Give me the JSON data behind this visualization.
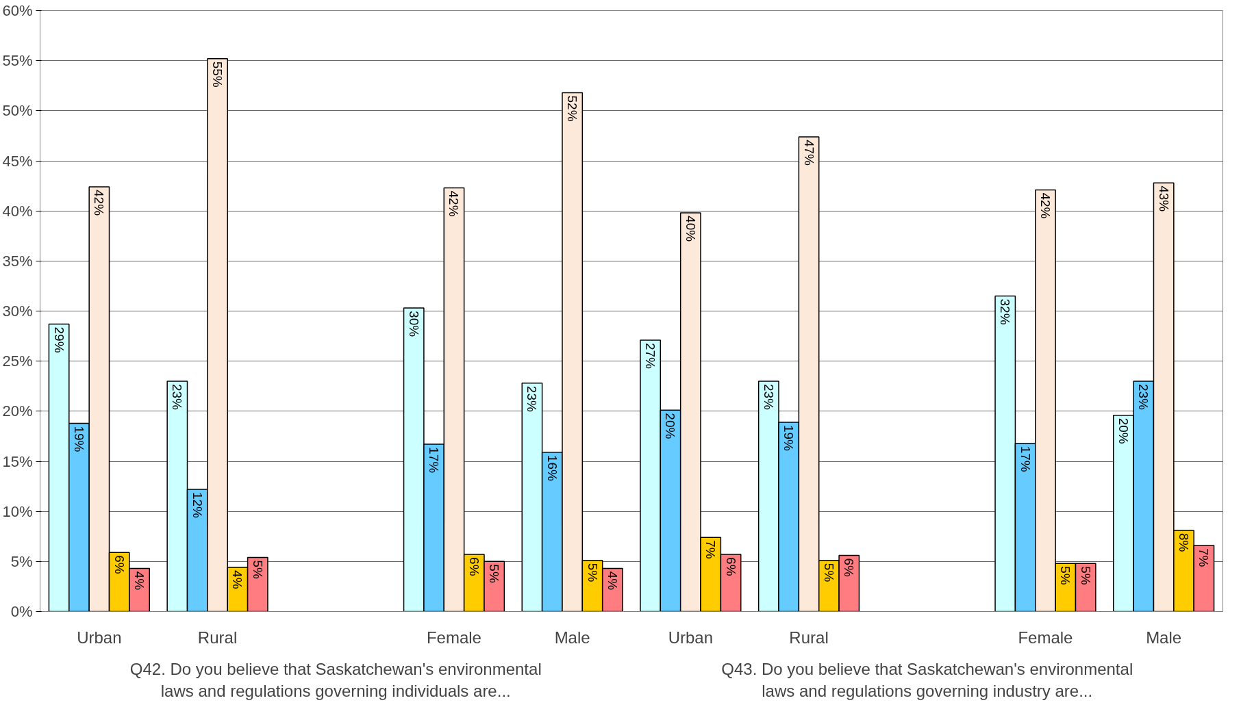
{
  "chart_data": {
    "type": "bar",
    "categories": [
      "Urban",
      "Rural",
      null,
      "Female",
      "Male",
      "Urban",
      "Rural",
      null,
      "Female",
      "Male"
    ],
    "series": [
      {
        "color": "#ccffff",
        "values": [
          28.7,
          23.0,
          null,
          30.3,
          22.8,
          27.1,
          23.0,
          null,
          31.5,
          19.6
        ],
        "value_labels": [
          "29%",
          "23%",
          null,
          "30%",
          "23%",
          "27%",
          "23%",
          null,
          "32%",
          "20%"
        ]
      },
      {
        "color": "#66ccff",
        "values": [
          18.8,
          12.2,
          null,
          16.7,
          15.9,
          20.1,
          18.9,
          null,
          16.8,
          23.0
        ],
        "value_labels": [
          "19%",
          "12%",
          null,
          "17%",
          "16%",
          "20%",
          "19%",
          null,
          "17%",
          "23%"
        ]
      },
      {
        "color": "#fde9d9",
        "values": [
          42.4,
          55.2,
          null,
          42.3,
          51.8,
          39.8,
          47.4,
          null,
          42.1,
          42.8
        ],
        "value_labels": [
          "42%",
          "55%",
          null,
          "42%",
          "52%",
          "40%",
          "47%",
          null,
          "42%",
          "43%"
        ]
      },
      {
        "color": "#ffcc00",
        "values": [
          5.9,
          4.4,
          null,
          5.7,
          5.1,
          7.4,
          5.1,
          null,
          4.8,
          8.1
        ],
        "value_labels": [
          "6%",
          "4%",
          null,
          "6%",
          "5%",
          "7%",
          "5%",
          null,
          "5%",
          "8%"
        ]
      },
      {
        "color": "#ff7c80",
        "values": [
          4.3,
          5.4,
          null,
          5.0,
          4.3,
          5.7,
          5.6,
          null,
          4.8,
          6.6
        ],
        "value_labels": [
          "4%",
          "5%",
          null,
          "5%",
          "4%",
          "6%",
          "6%",
          null,
          "5%",
          "7%"
        ]
      }
    ],
    "ylim": [
      0,
      60
    ],
    "yticks": [
      {
        "value": 0,
        "label": "0%"
      },
      {
        "value": 5,
        "label": "5%"
      },
      {
        "value": 10,
        "label": "10%"
      },
      {
        "value": 15,
        "label": "15%"
      },
      {
        "value": 20,
        "label": "20%"
      },
      {
        "value": 25,
        "label": "25%"
      },
      {
        "value": 30,
        "label": "30%"
      },
      {
        "value": 35,
        "label": "35%"
      },
      {
        "value": 40,
        "label": "40%"
      },
      {
        "value": 45,
        "label": "45%"
      },
      {
        "value": 50,
        "label": "50%"
      },
      {
        "value": 55,
        "label": "55%"
      },
      {
        "value": 60,
        "label": "60%"
      }
    ],
    "grid": "y",
    "annotations": [
      "Q42. Do you believe that Saskatchewan's environmental\nlaws and regulations governing individuals are...",
      "Q43. Do you believe that Saskatchewan's environmental\nlaws and regulations governing industry are..."
    ]
  }
}
